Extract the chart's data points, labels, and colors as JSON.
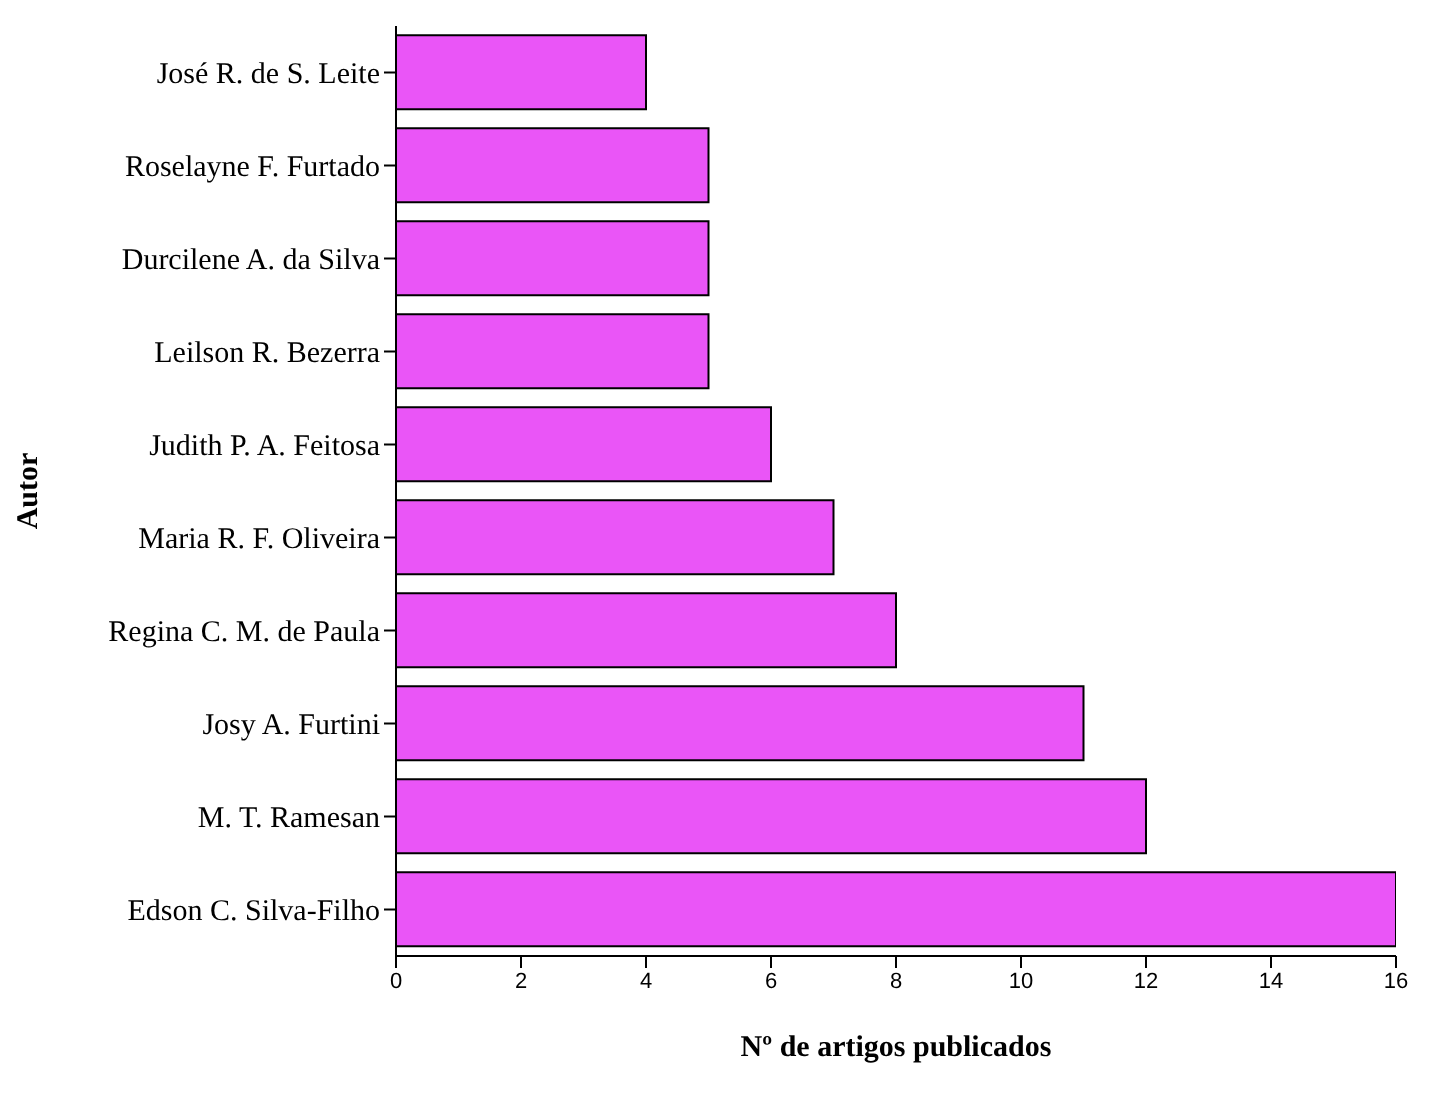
{
  "chart_data": {
    "type": "bar",
    "orientation": "horizontal",
    "xlabel": "Nº de artigos publicados",
    "ylabel": "Autor",
    "categories": [
      "José R. de S. Leite",
      "Roselayne F. Furtado",
      "Durcilene A. da Silva",
      "Leilson R. Bezerra",
      "Judith P. A. Feitosa",
      "Maria R. F. Oliveira",
      "Regina C. M. de Paula",
      "Josy A. Furtini",
      "M. T. Ramesan",
      "Edson C. Silva-Filho"
    ],
    "values": [
      4,
      5,
      5,
      5,
      6,
      7,
      8,
      11,
      12,
      16
    ],
    "color": "#ea55f7",
    "xlim": [
      0,
      16
    ],
    "xticks": [
      0,
      2,
      4,
      6,
      8,
      10,
      12,
      14,
      16
    ]
  }
}
